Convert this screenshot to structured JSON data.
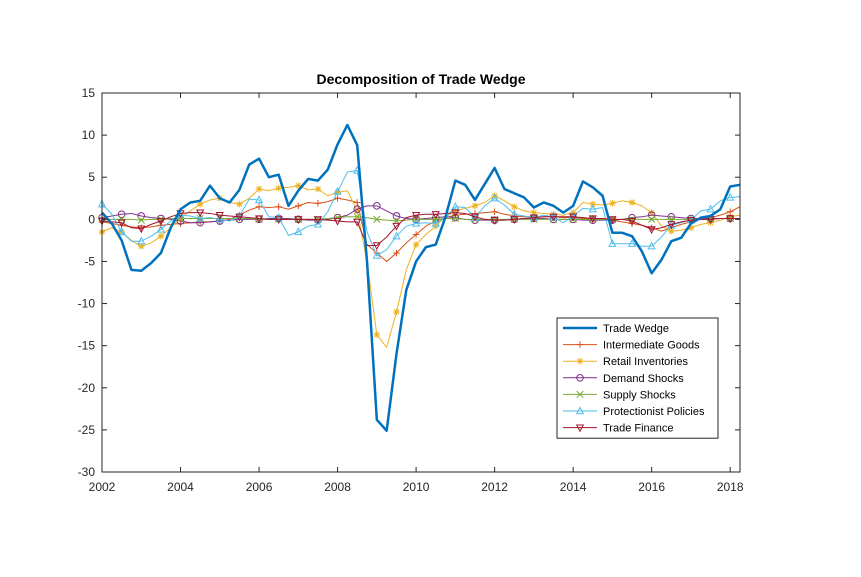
{
  "chart_data": {
    "type": "line",
    "title": "Decomposition of Trade Wedge",
    "xlabel": "",
    "ylabel": "",
    "xlim": [
      2002,
      2018.25
    ],
    "ylim": [
      -30,
      15
    ],
    "xticks": [
      2002,
      2004,
      2006,
      2008,
      2010,
      2012,
      2014,
      2016,
      2018
    ],
    "yticks": [
      -30,
      -25,
      -20,
      -15,
      -10,
      -5,
      0,
      5,
      10,
      15
    ],
    "grid": false,
    "legend_position": "bottom-right",
    "x": [
      2002.0,
      2002.25,
      2002.5,
      2002.75,
      2003.0,
      2003.25,
      2003.5,
      2003.75,
      2004.0,
      2004.25,
      2004.5,
      2004.75,
      2005.0,
      2005.25,
      2005.5,
      2005.75,
      2006.0,
      2006.25,
      2006.5,
      2006.75,
      2007.0,
      2007.25,
      2007.5,
      2007.75,
      2008.0,
      2008.25,
      2008.5,
      2008.75,
      2009.0,
      2009.25,
      2009.5,
      2009.75,
      2010.0,
      2010.25,
      2010.5,
      2010.75,
      2011.0,
      2011.25,
      2011.5,
      2011.75,
      2012.0,
      2012.25,
      2012.5,
      2012.75,
      2013.0,
      2013.25,
      2013.5,
      2013.75,
      2014.0,
      2014.25,
      2014.5,
      2014.75,
      2015.0,
      2015.25,
      2015.5,
      2015.75,
      2016.0,
      2016.25,
      2016.5,
      2016.75,
      2017.0,
      2017.25,
      2017.5,
      2017.75,
      2018.0,
      2018.25
    ],
    "series": [
      {
        "name": "Trade Wedge",
        "color": "#0072BD",
        "marker": "none",
        "width": 2.5,
        "values": [
          0.8,
          -0.5,
          -2.5,
          -6.0,
          -6.1,
          -5.2,
          -4.0,
          -1.0,
          1.2,
          2.0,
          2.2,
          4.0,
          2.5,
          2.0,
          3.5,
          6.5,
          7.2,
          5.0,
          5.3,
          1.6,
          3.4,
          4.8,
          4.6,
          5.9,
          8.9,
          11.2,
          8.8,
          -5.0,
          -23.8,
          -25.1,
          -16.0,
          -8.4,
          -5.0,
          -3.3,
          -3.0,
          0.3,
          4.6,
          4.1,
          2.3,
          4.2,
          6.1,
          3.6,
          3.1,
          2.6,
          1.4,
          2.0,
          1.6,
          0.8,
          1.6,
          4.5,
          3.8,
          2.8,
          -1.6,
          -1.6,
          -2.0,
          -3.8,
          -6.4,
          -4.8,
          -2.6,
          -2.2,
          -0.5,
          0.2,
          0.4,
          1.2,
          3.9,
          4.1
        ]
      },
      {
        "name": "Intermediate Goods",
        "color": "#D95319",
        "marker": "plus",
        "width": 1,
        "values": [
          -0.3,
          -0.5,
          -0.7,
          -0.9,
          -1.0,
          -0.9,
          -0.7,
          -0.6,
          -0.5,
          -0.4,
          -0.3,
          -0.3,
          -0.2,
          0.0,
          0.5,
          1.1,
          1.5,
          1.4,
          1.5,
          1.2,
          1.6,
          2.0,
          1.9,
          2.1,
          2.5,
          2.3,
          2.0,
          -3.0,
          -4.0,
          -5.0,
          -4.0,
          -2.8,
          -1.8,
          -0.8,
          -0.2,
          0.2,
          0.5,
          0.6,
          0.7,
          0.8,
          0.9,
          0.6,
          0.4,
          0.3,
          0.3,
          0.3,
          0.3,
          0.2,
          0.2,
          0.1,
          0.1,
          0.0,
          -0.1,
          -0.3,
          -0.5,
          -0.7,
          -1.0,
          -1.4,
          -1.0,
          -0.6,
          -0.3,
          0.0,
          0.2,
          0.5,
          0.9,
          1.5
        ]
      },
      {
        "name": "Retail Inventories",
        "color": "#EDB120",
        "marker": "star",
        "width": 1,
        "values": [
          -1.5,
          -1.0,
          -1.5,
          -2.5,
          -3.2,
          -2.8,
          -2.0,
          -1.0,
          0.2,
          1.0,
          1.8,
          2.3,
          2.5,
          2.0,
          1.8,
          2.5,
          3.6,
          3.4,
          3.7,
          3.8,
          4.0,
          3.5,
          3.6,
          2.8,
          3.2,
          3.4,
          1.0,
          -5.0,
          -13.7,
          -15.2,
          -11.0,
          -6.0,
          -3.0,
          -1.8,
          -0.8,
          0.3,
          1.0,
          1.3,
          1.6,
          2.0,
          2.8,
          2.2,
          1.5,
          1.0,
          0.8,
          0.7,
          0.6,
          0.5,
          0.8,
          2.0,
          1.8,
          1.7,
          1.9,
          2.2,
          2.0,
          1.6,
          0.8,
          -0.8,
          -1.4,
          -1.3,
          -1.0,
          -0.6,
          -0.4,
          -0.1,
          0.3,
          0.5
        ]
      },
      {
        "name": "Demand Shocks",
        "color": "#7E2F8E",
        "marker": "circle",
        "width": 1,
        "values": [
          0.2,
          0.4,
          0.6,
          0.7,
          0.4,
          0.2,
          0.1,
          0.0,
          -0.2,
          -0.4,
          -0.4,
          -0.3,
          -0.2,
          -0.1,
          0.0,
          0.0,
          0.0,
          0.1,
          0.1,
          0.1,
          0.0,
          -0.1,
          -0.1,
          0.0,
          0.2,
          0.5,
          1.2,
          1.6,
          1.6,
          1.0,
          0.4,
          0.1,
          0.0,
          0.1,
          0.2,
          0.3,
          0.2,
          0.0,
          -0.1,
          -0.1,
          -0.1,
          -0.1,
          0.0,
          0.1,
          0.1,
          0.1,
          0.0,
          0.0,
          0.0,
          -0.1,
          -0.1,
          -0.1,
          -0.1,
          0.0,
          0.2,
          0.3,
          0.5,
          0.4,
          0.3,
          0.2,
          0.1,
          0.1,
          0.1,
          0.1,
          0.1,
          0.1
        ]
      },
      {
        "name": "Supply Shocks",
        "color": "#77AC30",
        "marker": "x",
        "width": 1,
        "values": [
          0.0,
          0.0,
          0.0,
          0.0,
          -0.1,
          0.0,
          0.0,
          0.1,
          0.1,
          0.1,
          0.1,
          0.1,
          0.1,
          0.1,
          0.1,
          0.1,
          0.0,
          0.0,
          0.0,
          0.0,
          0.0,
          0.0,
          0.0,
          0.1,
          0.2,
          0.3,
          0.3,
          0.2,
          0.0,
          -0.1,
          -0.2,
          -0.1,
          0.0,
          0.0,
          0.0,
          0.1,
          0.1,
          0.0,
          0.0,
          0.0,
          0.0,
          0.0,
          0.0,
          0.0,
          0.0,
          0.0,
          0.0,
          0.0,
          0.0,
          0.0,
          0.0,
          0.0,
          0.0,
          0.0,
          0.0,
          0.0,
          0.0,
          0.0,
          0.0,
          0.0,
          0.0,
          0.0,
          0.0,
          0.1,
          0.1,
          0.1
        ]
      },
      {
        "name": "Protectionist Policies",
        "color": "#4DBEEE",
        "marker": "triangle-up",
        "width": 1,
        "values": [
          1.8,
          0.6,
          -1.5,
          -2.6,
          -2.6,
          -2.0,
          -1.2,
          -0.2,
          0.5,
          0.4,
          0.1,
          0.2,
          0.0,
          -0.2,
          0.4,
          2.4,
          2.3,
          0.3,
          0.2,
          -1.9,
          -1.5,
          -0.8,
          -0.6,
          0.9,
          3.3,
          5.6,
          5.8,
          -1.5,
          -4.3,
          -3.6,
          -2.0,
          -0.8,
          -0.5,
          -0.4,
          -0.5,
          0.2,
          1.5,
          1.4,
          0.2,
          1.6,
          2.5,
          1.7,
          0.6,
          0.4,
          0.2,
          0.5,
          0.3,
          -0.4,
          0.4,
          1.3,
          1.2,
          1.4,
          -2.9,
          -2.9,
          -2.9,
          -3.2,
          -3.2,
          -2.1,
          -0.7,
          -0.4,
          -0.1,
          1.0,
          1.2,
          2.2,
          2.6,
          2.7
        ]
      },
      {
        "name": "Trade Finance",
        "color": "#A2142F",
        "marker": "triangle-down",
        "width": 1,
        "values": [
          -0.2,
          -0.3,
          -0.4,
          -1.0,
          -1.1,
          -0.6,
          -0.2,
          0.3,
          0.7,
          0.8,
          0.8,
          0.7,
          0.5,
          0.4,
          0.3,
          0.2,
          0.1,
          0.0,
          0.0,
          0.0,
          0.0,
          0.0,
          0.0,
          -0.1,
          -0.2,
          -0.3,
          -0.3,
          -3.1,
          -3.1,
          -2.1,
          -0.8,
          0.2,
          0.5,
          0.6,
          0.6,
          0.7,
          0.8,
          0.7,
          0.3,
          0.0,
          -0.1,
          -0.1,
          0.0,
          0.1,
          0.2,
          0.3,
          0.3,
          0.3,
          0.3,
          0.2,
          0.1,
          0.1,
          0.0,
          0.0,
          -0.2,
          -0.7,
          -1.2,
          -1.0,
          -0.6,
          -0.3,
          -0.1,
          0.0,
          0.0,
          0.1,
          0.1,
          0.1
        ]
      }
    ]
  }
}
